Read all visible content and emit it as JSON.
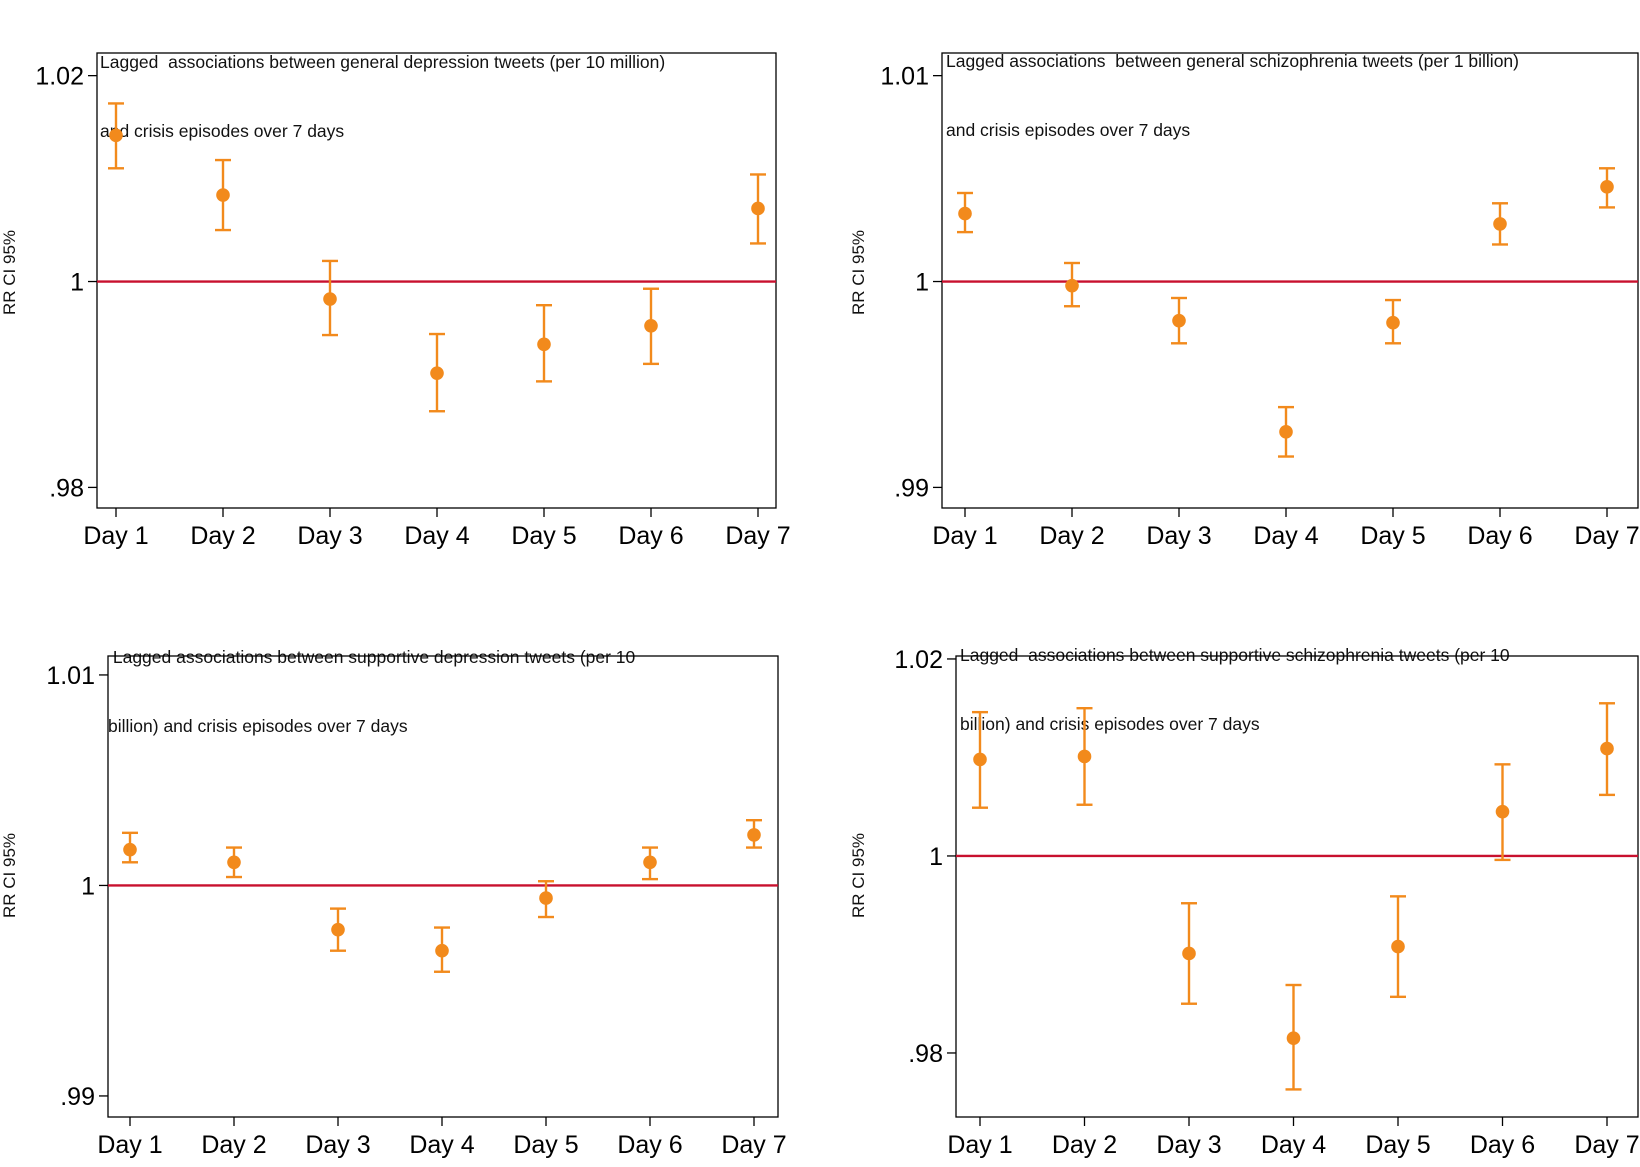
{
  "colors": {
    "point": "#F28A1C",
    "reference_line": "#C8102E",
    "frame": "#000000"
  },
  "chart_data": [
    {
      "type": "scatter",
      "title_lines": [
        "Lagged  associations between general depression tweets (per 10 million)",
        "and crisis episodes over 7 days"
      ],
      "ylabel": "RR CI 95%",
      "xlabel": "",
      "categories": [
        "Day 1",
        "Day 2",
        "Day 3",
        "Day 4",
        "Day 5",
        "Day 6",
        "Day 7"
      ],
      "yticks": [
        0.98,
        1,
        1.02
      ],
      "ytick_labels": [
        ".98",
        "1",
        "1.02"
      ],
      "ylim": [
        0.978,
        1.0222
      ],
      "reference_line": 1,
      "grid": false,
      "series": [
        {
          "values": [
            1.0142,
            1.0084,
            0.9983,
            0.9911,
            0.9939,
            0.9957,
            1.0071
          ],
          "lower": [
            1.011,
            1.005,
            0.9948,
            0.9874,
            0.9903,
            0.992,
            1.0037
          ],
          "upper": [
            1.0173,
            1.0118,
            1.002,
            0.9949,
            0.9977,
            0.9993,
            1.0104
          ]
        }
      ]
    },
    {
      "type": "scatter",
      "title_lines": [
        "Lagged associations  between general schizophrenia tweets (per 1 billion)",
        "and crisis episodes over 7 days"
      ],
      "ylabel": "RR CI 95%",
      "xlabel": "",
      "categories": [
        "Day 1",
        "Day 2",
        "Day 3",
        "Day 4",
        "Day 5",
        "Day 6",
        "Day 7"
      ],
      "yticks": [
        0.99,
        1,
        1.01
      ],
      "ytick_labels": [
        ".99",
        "1",
        "1.01"
      ],
      "ylim": [
        0.989,
        1.0111
      ],
      "reference_line": 1,
      "grid": false,
      "series": [
        {
          "values": [
            1.0033,
            0.9998,
            0.9981,
            0.9927,
            0.998,
            1.0028,
            1.0046
          ],
          "lower": [
            1.0024,
            0.9988,
            0.997,
            0.9915,
            0.997,
            1.0018,
            1.0036
          ],
          "upper": [
            1.0043,
            1.0009,
            0.9992,
            0.9939,
            0.9991,
            1.0038,
            1.0055
          ]
        }
      ]
    },
    {
      "type": "scatter",
      "title_lines": [
        " Lagged associations between supportive depression tweets (per 10",
        "billion) and crisis episodes over 7 days"
      ],
      "ylabel": "RR CI 95%",
      "xlabel": "",
      "categories": [
        "Day 1",
        "Day 2",
        "Day 3",
        "Day 4",
        "Day 5",
        "Day 6",
        "Day 7"
      ],
      "yticks": [
        0.99,
        1,
        1.01
      ],
      "ytick_labels": [
        ".99",
        "1",
        "1.01"
      ],
      "ylim": [
        0.989,
        1.0109
      ],
      "reference_line": 1,
      "grid": false,
      "series": [
        {
          "values": [
            1.0017,
            1.0011,
            0.9979,
            0.9969,
            0.9994,
            1.0011,
            1.0024
          ],
          "lower": [
            1.0011,
            1.0004,
            0.9969,
            0.9959,
            0.9985,
            1.0003,
            1.0018
          ],
          "upper": [
            1.0025,
            1.0018,
            0.9989,
            0.998,
            1.0002,
            1.0018,
            1.0031
          ]
        }
      ]
    },
    {
      "type": "scatter",
      "title_lines": [
        "Lagged  associations between supportive schizophrenia tweets (per 10",
        "billion) and crisis episodes over 7 days"
      ],
      "ylabel": "RR CI 95%",
      "xlabel": "",
      "categories": [
        "Day 1",
        "Day 2",
        "Day 3",
        "Day 4",
        "Day 5",
        "Day 6",
        "Day 7"
      ],
      "yticks": [
        0.98,
        1,
        1.02
      ],
      "ytick_labels": [
        ".98",
        "1",
        "1.02"
      ],
      "ylim": [
        0.9735,
        1.0203
      ],
      "reference_line": 1,
      "grid": false,
      "series": [
        {
          "values": [
            1.0098,
            1.0101,
            0.9901,
            0.9815,
            0.9908,
            1.0045,
            1.0109
          ],
          "lower": [
            1.0049,
            1.0052,
            0.985,
            0.9763,
            0.9857,
            0.9996,
            1.0062
          ],
          "upper": [
            1.0146,
            1.015,
            0.9952,
            0.9869,
            0.9959,
            1.0093,
            1.0155
          ]
        }
      ]
    }
  ]
}
